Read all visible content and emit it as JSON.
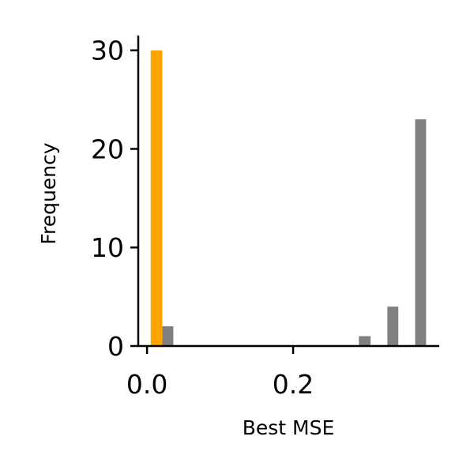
{
  "chart_data": {
    "type": "bar",
    "title": "",
    "xlabel": "Best MSE",
    "ylabel": "Frequency",
    "xlim": [
      -0.012,
      0.4
    ],
    "ylim": [
      0,
      31.5
    ],
    "x_ticks": [
      {
        "value": 0.0,
        "label": "0.0"
      },
      {
        "value": 0.2,
        "label": "0.2"
      }
    ],
    "y_ticks": [
      {
        "value": 0,
        "label": "0"
      },
      {
        "value": 10,
        "label": "10"
      },
      {
        "value": 20,
        "label": "20"
      },
      {
        "value": 30,
        "label": "30"
      }
    ],
    "grid": false,
    "legend": null,
    "series": [
      {
        "color": "#FFA500",
        "bars": [
          {
            "x_start": 0.005,
            "x_end": 0.021,
            "value": 30
          }
        ]
      },
      {
        "color": "#808080",
        "bars": [
          {
            "x_start": 0.021,
            "x_end": 0.036,
            "value": 2
          },
          {
            "x_start": 0.29,
            "x_end": 0.306,
            "value": 1
          },
          {
            "x_start": 0.329,
            "x_end": 0.344,
            "value": 4
          },
          {
            "x_start": 0.367,
            "x_end": 0.382,
            "value": 23
          }
        ]
      }
    ]
  }
}
